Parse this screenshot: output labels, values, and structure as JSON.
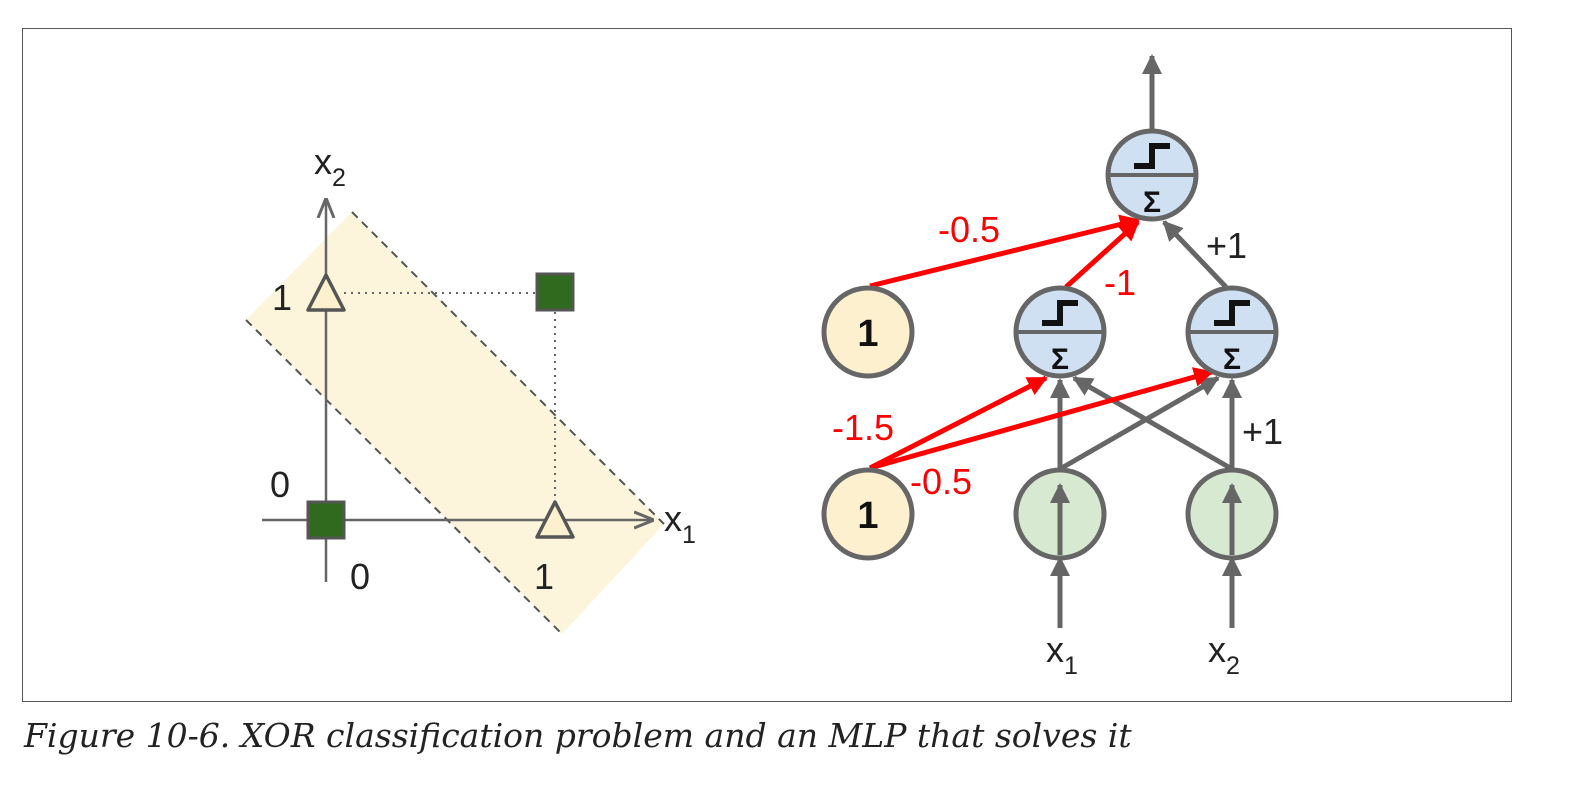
{
  "caption": "Figure 10-6. XOR classification problem and an MLP that solves it",
  "plot": {
    "x_axis_label": "x",
    "x_axis_subscript": "1",
    "y_axis_label": "x",
    "y_axis_subscript": "2",
    "x_ticks": [
      "0",
      "1"
    ],
    "y_ticks": [
      "0",
      "1"
    ],
    "points": [
      {
        "x": 0,
        "y": 0,
        "shape": "square",
        "color": "#2f6a1f"
      },
      {
        "x": 1,
        "y": 1,
        "shape": "square",
        "color": "#2f6a1f"
      },
      {
        "x": 0,
        "y": 1,
        "shape": "triangle",
        "color": "#fdf0cf"
      },
      {
        "x": 1,
        "y": 0,
        "shape": "triangle",
        "color": "#fdf0cf"
      }
    ],
    "band_color": "#fdf4dc"
  },
  "network": {
    "bias_label": "1",
    "input_labels": [
      {
        "text": "x",
        "sub": "1"
      },
      {
        "text": "x",
        "sub": "2"
      }
    ],
    "weights": {
      "output_bias": "-0.5",
      "hidden1_to_output": "-1",
      "hidden2_to_output": "+1",
      "hidden1_bias": "-1.5",
      "hidden2_bias": "-0.5",
      "inputs_to_hidden2": "+1"
    },
    "colors": {
      "bias_node": "#fdf0cf",
      "ltu_node": "#cfe0f3",
      "input_node": "#d7e9d1",
      "edge": "#666666",
      "weight_edge": "#ff0000"
    }
  }
}
